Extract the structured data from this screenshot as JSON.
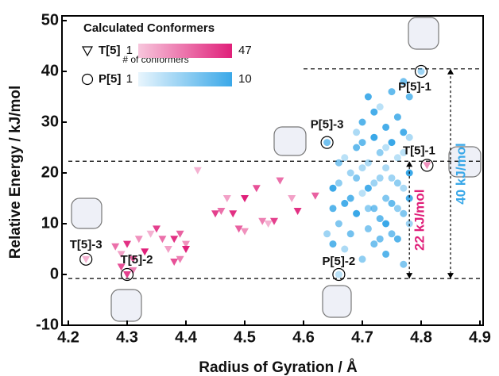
{
  "chart_data": {
    "type": "scatter",
    "x_label": "Radius of Gyration / Å",
    "y_label": "Relative Energy / kJ/mol",
    "xlim": [
      4.2,
      4.9
    ],
    "ylim": [
      -10,
      50
    ],
    "xticks": [
      4.2,
      4.3,
      4.4,
      4.5,
      4.6,
      4.7,
      4.8,
      4.9
    ],
    "yticks": [
      -10,
      0,
      10,
      20,
      30,
      40,
      50
    ],
    "legend": {
      "title": "Calculated  Conformers",
      "colorbar_label": "# of conformers"
    },
    "series": [
      {
        "name": "T[5]",
        "marker": "triangle",
        "color": "#e0207a",
        "light_color": "#f4b8d4",
        "count_min": "1",
        "count_max": "47",
        "x": [
          4.23,
          4.3,
          4.28,
          4.29,
          4.3,
          4.31,
          4.32,
          4.33,
          4.29,
          4.31,
          4.34,
          4.35,
          4.36,
          4.37,
          4.38,
          4.39,
          4.4,
          4.4,
          4.38,
          4.39,
          4.42,
          4.45,
          4.46,
          4.47,
          4.48,
          4.49,
          4.5,
          4.5,
          4.52,
          4.53,
          4.54,
          4.55,
          4.56,
          4.58,
          4.59,
          4.62,
          4.81
        ],
        "values": [
          3,
          0,
          5.5,
          4,
          6,
          3,
          7,
          4.5,
          1.5,
          0.8,
          8,
          9,
          7,
          5,
          7,
          8,
          6,
          5,
          2.5,
          3,
          20.5,
          12,
          12.5,
          15,
          12,
          9,
          8.5,
          15,
          17,
          10.5,
          10,
          10.5,
          18.5,
          15,
          12.5,
          15.5,
          21.5
        ]
      },
      {
        "name": "P[5]",
        "marker": "circle",
        "color": "#3aa8e8",
        "light_color": "#cde9fa",
        "count_min": "1",
        "count_max": "10",
        "x": [
          4.66,
          4.65,
          4.66,
          4.67,
          4.67,
          4.68,
          4.68,
          4.69,
          4.69,
          4.7,
          4.7,
          4.7,
          4.71,
          4.71,
          4.71,
          4.72,
          4.72,
          4.72,
          4.73,
          4.73,
          4.73,
          4.74,
          4.74,
          4.74,
          4.74,
          4.75,
          4.75,
          4.75,
          4.75,
          4.76,
          4.76,
          4.76,
          4.77,
          4.77,
          4.77,
          4.77,
          4.78,
          4.78,
          4.78,
          4.66,
          4.67,
          4.68,
          4.69,
          4.7,
          4.71,
          4.72,
          4.73,
          4.74,
          4.75,
          4.76,
          4.77,
          4.65,
          4.66,
          4.69,
          4.72,
          4.73,
          4.64,
          4.65,
          4.7,
          4.71,
          4.74,
          4.76,
          4.77,
          4.78,
          4.78,
          4.64,
          4.8
        ],
        "values": [
          0,
          6,
          10,
          5,
          14,
          8,
          20,
          12,
          25,
          3,
          16,
          30,
          9,
          22,
          35,
          6,
          18,
          27,
          11,
          24,
          33,
          4,
          15,
          21,
          29,
          8,
          19,
          26,
          36,
          13,
          23,
          31,
          2,
          17,
          28,
          38,
          10,
          20,
          35,
          18,
          23,
          15,
          19,
          21,
          17,
          13,
          19,
          10,
          14,
          18,
          24,
          13,
          22,
          28,
          32,
          7,
          8,
          17,
          26,
          13,
          25,
          7,
          12,
          27,
          15,
          26,
          40
        ]
      }
    ],
    "annotations": [
      {
        "text": "T[5]-3",
        "x": 4.23,
        "y": 3
      },
      {
        "text": "T[5]-2",
        "x": 4.3,
        "y": 0
      },
      {
        "text": "P[5]-3",
        "x": 4.64,
        "y": 26
      },
      {
        "text": "P[5]-2",
        "x": 4.66,
        "y": 0
      },
      {
        "text": "P[5]-1",
        "x": 4.8,
        "y": 40
      },
      {
        "text": "T[5]-1",
        "x": 4.81,
        "y": 21.5
      }
    ],
    "reference_lines": [
      {
        "y": 40.5,
        "x_start": 4.6
      },
      {
        "y": 22.3,
        "x_start": 4.2
      },
      {
        "y": -0.8,
        "x_start": 4.2
      }
    ],
    "brackets": [
      {
        "label": "22 kJ/mol",
        "from": -0.8,
        "to": 22.3,
        "x": 4.78,
        "color": "#e0207a"
      },
      {
        "label": "40 kJ/mol",
        "from": -0.8,
        "to": 40.5,
        "x": 4.85,
        "color": "#3aa8e8"
      }
    ]
  }
}
